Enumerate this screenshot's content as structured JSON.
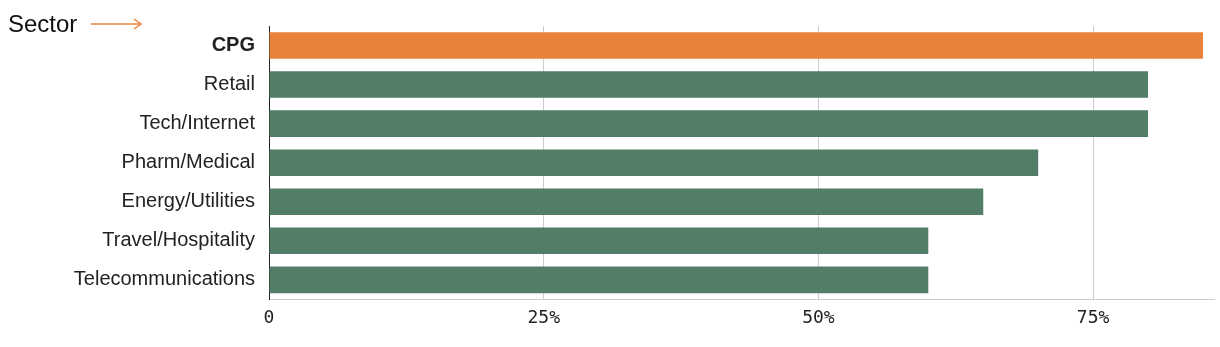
{
  "chart_data": {
    "type": "bar",
    "orientation": "horizontal",
    "annotation": "Sector",
    "categories": [
      "CPG",
      "Retail",
      "Tech/Internet",
      "Pharm/Medical",
      "Energy/Utilities",
      "Travel/Hospitality",
      "Telecommunications"
    ],
    "values": [
      85,
      80,
      80,
      70,
      65,
      60,
      60
    ],
    "colors": [
      "#e8823a",
      "#527d66",
      "#527d66",
      "#527d66",
      "#527d66",
      "#527d66",
      "#527d66"
    ],
    "xlim": [
      0,
      86
    ],
    "xticks": [
      0,
      {
        "value": 25,
        "label": "25%"
      },
      {
        "value": 50,
        "label": "50%"
      },
      {
        "value": 75,
        "label": "75%"
      }
    ],
    "grid": true
  }
}
